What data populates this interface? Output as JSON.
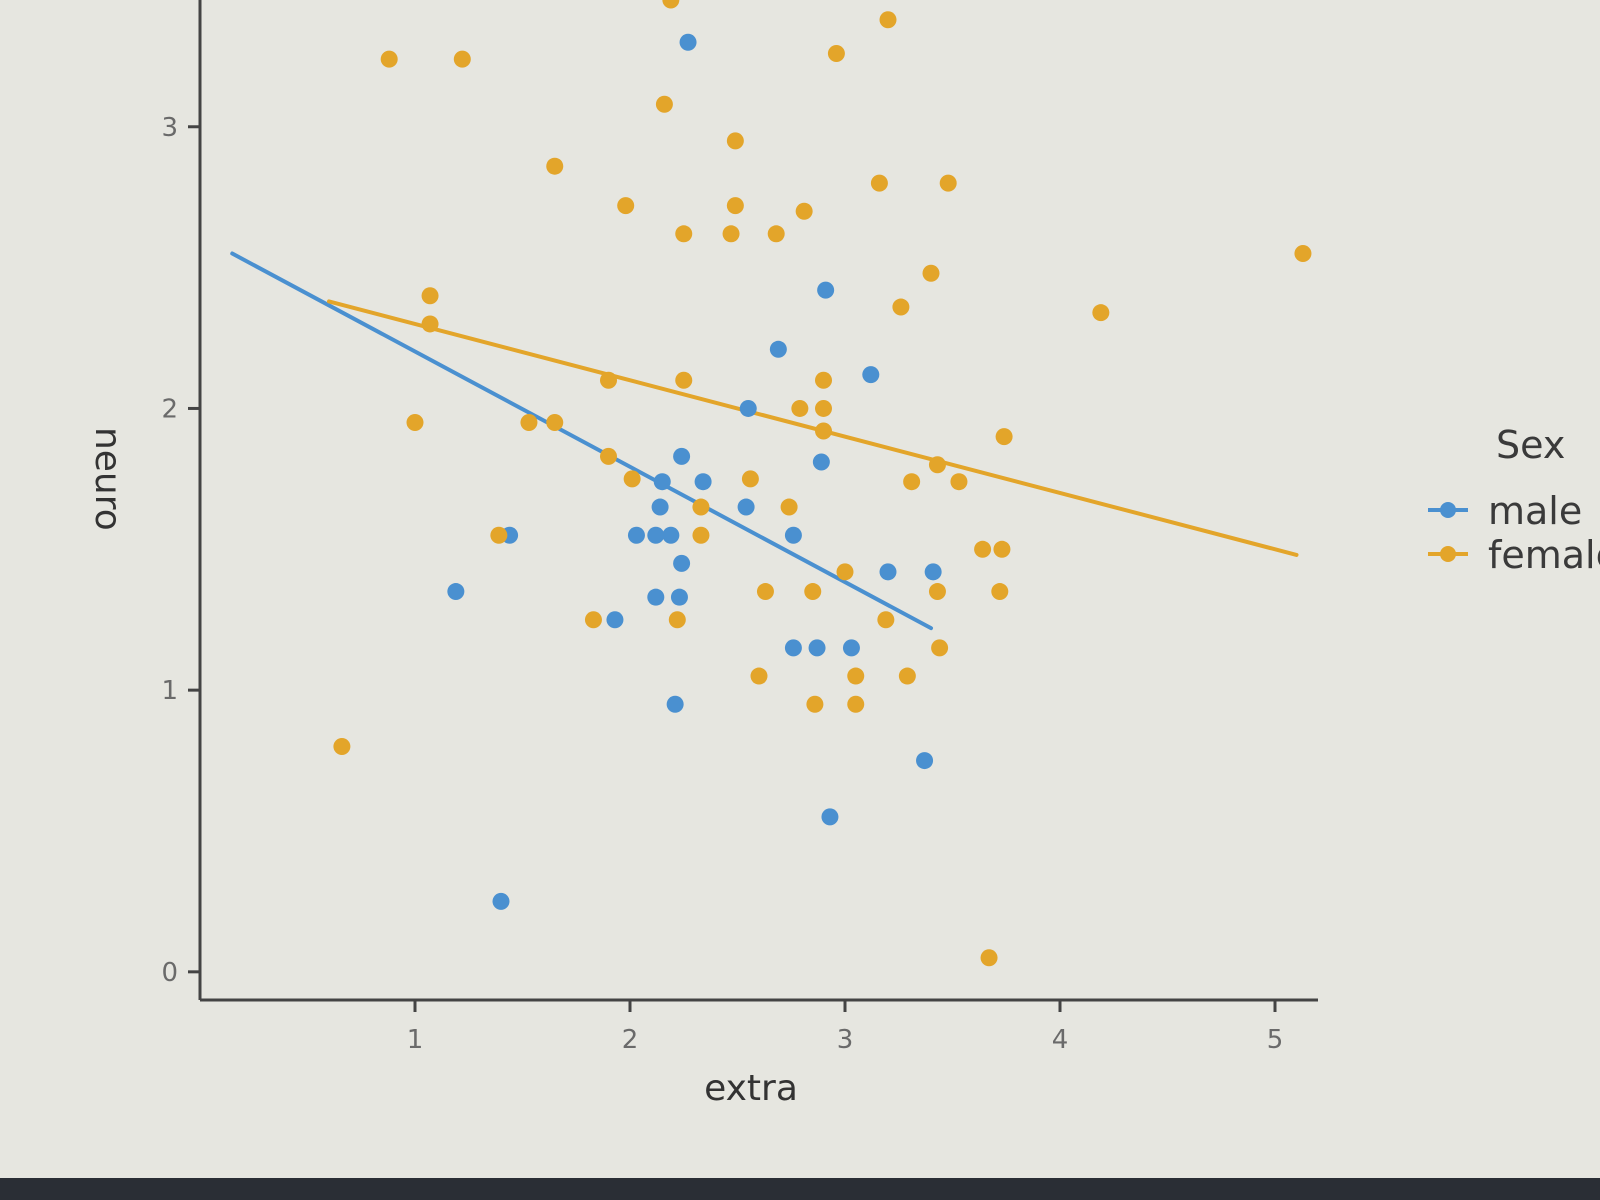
{
  "chart_data": {
    "type": "scatter",
    "title": "",
    "xlabel": "extra",
    "ylabel": "neuro",
    "xlim": [
      0,
      5.2
    ],
    "ylim": [
      -0.1,
      3.45
    ],
    "x_ticks": [
      1,
      2,
      3,
      4,
      5
    ],
    "y_ticks": [
      0,
      1,
      2,
      3
    ],
    "grid": false,
    "legend": {
      "title": "Sex",
      "placement": "right"
    },
    "series": [
      {
        "name": "male",
        "color": "#4a90d0",
        "points": [
          [
            2.27,
            3.3
          ],
          [
            2.91,
            2.42
          ],
          [
            2.69,
            2.21
          ],
          [
            3.12,
            2.12
          ],
          [
            2.55,
            2.0
          ],
          [
            2.24,
            1.83
          ],
          [
            2.89,
            1.81
          ],
          [
            2.15,
            1.74
          ],
          [
            2.34,
            1.74
          ],
          [
            2.14,
            1.65
          ],
          [
            2.54,
            1.65
          ],
          [
            1.44,
            1.55
          ],
          [
            2.03,
            1.55
          ],
          [
            2.12,
            1.55
          ],
          [
            2.19,
            1.55
          ],
          [
            2.76,
            1.55
          ],
          [
            2.24,
            1.45
          ],
          [
            3.2,
            1.42
          ],
          [
            3.41,
            1.42
          ],
          [
            1.19,
            1.35
          ],
          [
            2.12,
            1.33
          ],
          [
            2.23,
            1.33
          ],
          [
            1.93,
            1.25
          ],
          [
            2.76,
            1.15
          ],
          [
            2.87,
            1.15
          ],
          [
            3.03,
            1.15
          ],
          [
            2.21,
            0.95
          ],
          [
            3.37,
            0.75
          ],
          [
            2.93,
            0.55
          ],
          [
            1.4,
            0.25
          ]
        ]
      },
      {
        "name": "female",
        "color": "#e3a52a",
        "points": [
          [
            2.19,
            3.45
          ],
          [
            3.2,
            3.38
          ],
          [
            0.88,
            3.24
          ],
          [
            1.22,
            3.24
          ],
          [
            2.96,
            3.26
          ],
          [
            2.16,
            3.08
          ],
          [
            2.49,
            2.95
          ],
          [
            1.65,
            2.86
          ],
          [
            3.16,
            2.8
          ],
          [
            3.48,
            2.8
          ],
          [
            1.98,
            2.72
          ],
          [
            2.49,
            2.72
          ],
          [
            2.81,
            2.7
          ],
          [
            2.25,
            2.62
          ],
          [
            2.47,
            2.62
          ],
          [
            2.68,
            2.62
          ],
          [
            5.13,
            2.55
          ],
          [
            3.4,
            2.48
          ],
          [
            1.07,
            2.4
          ],
          [
            3.26,
            2.36
          ],
          [
            4.19,
            2.34
          ],
          [
            1.07,
            2.3
          ],
          [
            1.9,
            2.1
          ],
          [
            2.25,
            2.1
          ],
          [
            2.9,
            2.1
          ],
          [
            2.79,
            2.0
          ],
          [
            2.9,
            2.0
          ],
          [
            1.0,
            1.95
          ],
          [
            1.53,
            1.95
          ],
          [
            1.65,
            1.95
          ],
          [
            2.9,
            1.92
          ],
          [
            3.74,
            1.9
          ],
          [
            1.9,
            1.83
          ],
          [
            3.43,
            1.8
          ],
          [
            2.01,
            1.75
          ],
          [
            2.56,
            1.75
          ],
          [
            3.31,
            1.74
          ],
          [
            3.53,
            1.74
          ],
          [
            2.33,
            1.65
          ],
          [
            2.74,
            1.65
          ],
          [
            1.39,
            1.55
          ],
          [
            2.33,
            1.55
          ],
          [
            3.64,
            1.5
          ],
          [
            3.73,
            1.5
          ],
          [
            3.0,
            1.42
          ],
          [
            2.63,
            1.35
          ],
          [
            2.85,
            1.35
          ],
          [
            3.43,
            1.35
          ],
          [
            3.72,
            1.35
          ],
          [
            1.83,
            1.25
          ],
          [
            2.22,
            1.25
          ],
          [
            3.19,
            1.25
          ],
          [
            3.44,
            1.15
          ],
          [
            2.6,
            1.05
          ],
          [
            3.05,
            1.05
          ],
          [
            3.29,
            1.05
          ],
          [
            2.86,
            0.95
          ],
          [
            3.05,
            0.95
          ],
          [
            0.66,
            0.8
          ],
          [
            3.67,
            0.05
          ]
        ]
      }
    ],
    "fit_lines": [
      {
        "series": "male",
        "x": [
          0.15,
          3.4
        ],
        "y": [
          2.55,
          1.22
        ]
      },
      {
        "series": "female",
        "x": [
          0.6,
          5.1
        ],
        "y": [
          2.38,
          1.48
        ]
      }
    ]
  }
}
